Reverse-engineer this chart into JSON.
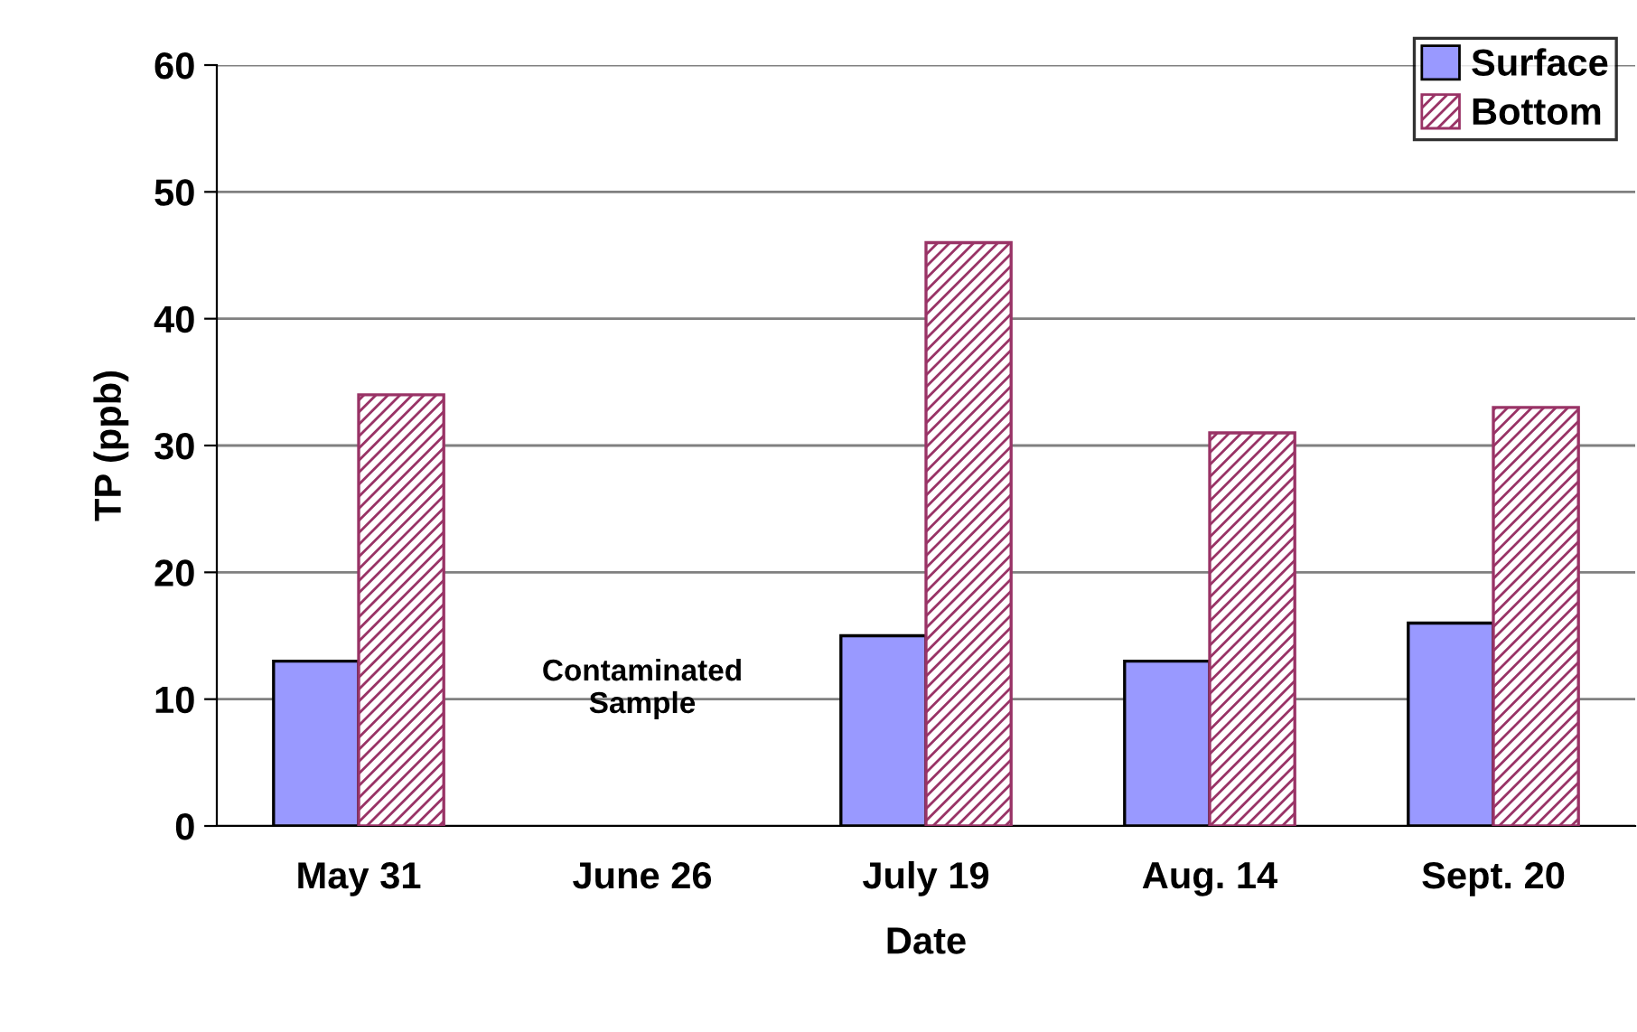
{
  "chart_data": {
    "type": "bar",
    "xlabel": "Date",
    "ylabel": "TP (ppb)",
    "categories": [
      "May 31",
      "June 26",
      "July 19",
      "Aug. 14",
      "Sept. 20"
    ],
    "series": [
      {
        "name": "Surface",
        "color": "#9999ff",
        "values": [
          13,
          null,
          15,
          13,
          16
        ]
      },
      {
        "name": "Bottom",
        "color": "#993366",
        "values": [
          34,
          null,
          46,
          31,
          33
        ]
      }
    ],
    "ylim": [
      0,
      60
    ],
    "yticks": [
      0,
      10,
      20,
      30,
      40,
      50,
      60
    ],
    "grid": "y",
    "legend": "top right",
    "annotations": [
      "Contaminated\nSample"
    ]
  }
}
